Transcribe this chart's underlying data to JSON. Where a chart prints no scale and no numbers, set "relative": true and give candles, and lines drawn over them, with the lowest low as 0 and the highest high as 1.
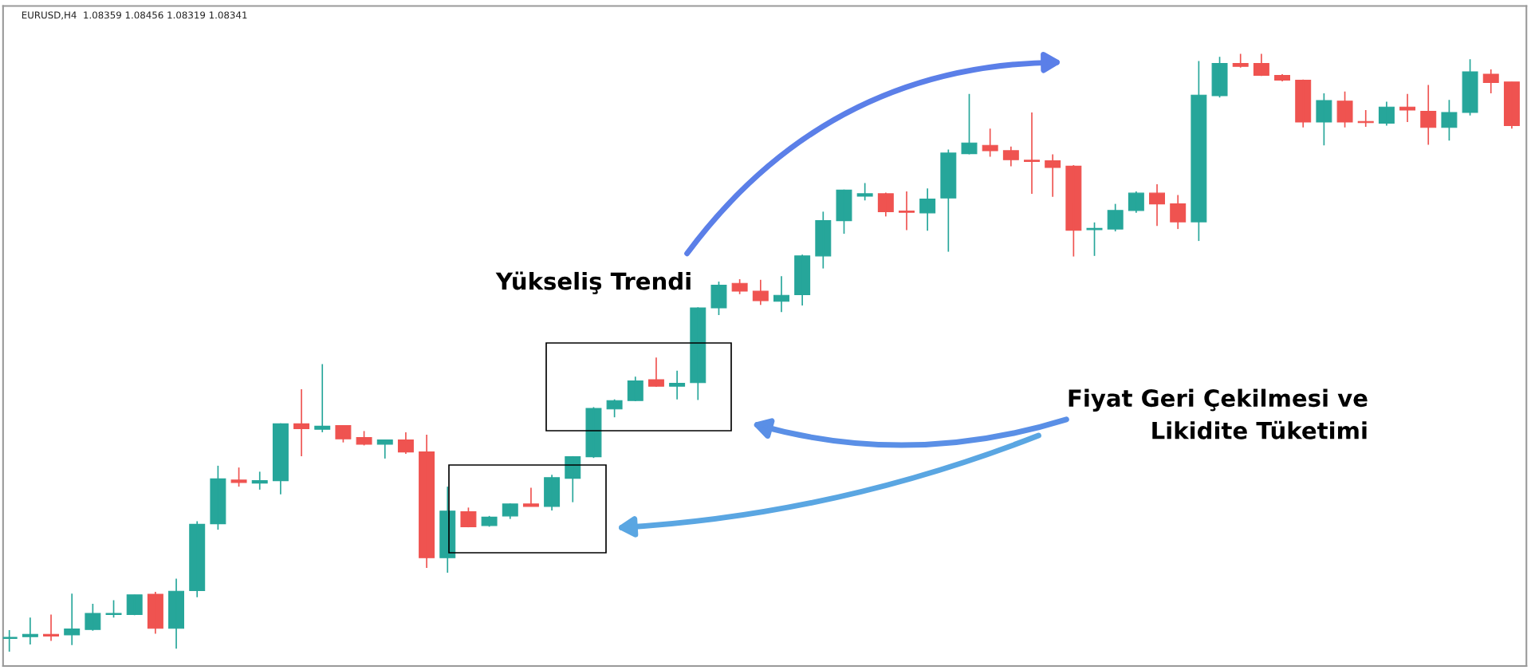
{
  "chart_data": {
    "type": "candlestick",
    "title": "EURUSD,H4  1.08359 1.08456 1.08319 1.08341",
    "relative": true,
    "categories": [
      null,
      null,
      null,
      null,
      null,
      null,
      null,
      null,
      null,
      null,
      null,
      null,
      null,
      null,
      null,
      null,
      null,
      null,
      null,
      null,
      null,
      null,
      null,
      null,
      null,
      null,
      null,
      null,
      null,
      null,
      null,
      null,
      null,
      null,
      null,
      null,
      null,
      null,
      null,
      null,
      null,
      null,
      null,
      null,
      null,
      null,
      null,
      null,
      null,
      null,
      null,
      null,
      null,
      null,
      null,
      null,
      null,
      null,
      null,
      null,
      null,
      null,
      null,
      null,
      null,
      null,
      null,
      null,
      null,
      null,
      null,
      null,
      null
    ],
    "colors": [
      "#26a69a",
      "#26a69a",
      "#ef5350",
      "#26a69a",
      "#26a69a",
      "#26a69a",
      "#26a69a",
      "#ef5350",
      "#26a69a",
      "#26a69a",
      "#26a69a",
      "#ef5350",
      "#26a69a",
      "#26a69a",
      "#ef5350",
      "#26a69a",
      "#ef5350",
      "#ef5350",
      "#26a69a",
      "#ef5350",
      "#ef5350",
      "#26a69a",
      "#ef5350",
      "#26a69a",
      "#26a69a",
      "#ef5350",
      "#26a69a",
      "#26a69a",
      "#26a69a",
      "#26a69a",
      "#26a69a",
      "#ef5350",
      "#26a69a",
      "#26a69a",
      "#26a69a",
      "#ef5350",
      "#ef5350",
      "#26a69a",
      "#26a69a",
      "#26a69a",
      "#26a69a",
      "#26a69a",
      "#ef5350",
      "#ef5350",
      "#26a69a",
      "#26a69a",
      "#26a69a",
      "#ef5350",
      "#ef5350",
      "#ef5350",
      "#ef5350",
      "#ef5350",
      "#26a69a",
      "#26a69a",
      "#26a69a",
      "#ef5350",
      "#ef5350",
      "#26a69a",
      "#26a69a",
      "#ef5350",
      "#ef5350",
      "#ef5350",
      "#ef5350",
      "#26a69a",
      "#ef5350",
      "#ef5350",
      "#26a69a",
      "#ef5350",
      "#ef5350",
      "#26a69a",
      "#26a69a",
      "#ef5350",
      "#ef5350"
    ],
    "ohlc": [
      [
        0.022,
        0.036,
        0,
        0.024
      ],
      [
        0.025,
        0.057,
        0.012,
        0.029
      ],
      [
        0.029,
        0.062,
        0.018,
        0.026
      ],
      [
        0.028,
        0.097,
        0.011,
        0.038
      ],
      [
        0.037,
        0.08,
        0.035,
        0.064
      ],
      [
        0.062,
        0.086,
        0.057,
        0.064
      ],
      [
        0.062,
        0.095,
        0.061,
        0.095
      ],
      [
        0.096,
        0.1,
        0.03,
        0.039
      ],
      [
        0.039,
        0.122,
        0.005,
        0.101
      ],
      [
        0.102,
        0.218,
        0.091,
        0.213
      ],
      [
        0.214,
        0.311,
        0.204,
        0.289
      ],
      [
        0.287,
        0.308,
        0.276,
        0.283
      ],
      [
        0.282,
        0.301,
        0.271,
        0.286
      ],
      [
        0.286,
        0.382,
        0.263,
        0.381
      ],
      [
        0.381,
        0.439,
        0.327,
        0.373
      ],
      [
        0.372,
        0.481,
        0.367,
        0.377
      ],
      [
        0.378,
        0.378,
        0.35,
        0.356
      ],
      [
        0.358,
        0.369,
        0.345,
        0.347
      ],
      [
        0.347,
        0.354,
        0.323,
        0.354
      ],
      [
        0.354,
        0.367,
        0.331,
        0.334
      ],
      [
        0.334,
        0.363,
        0.14,
        0.157
      ],
      [
        0.157,
        0.276,
        0.132,
        0.235
      ],
      [
        0.234,
        0.241,
        0.208,
        0.209
      ],
      [
        0.211,
        0.227,
        0.209,
        0.225
      ],
      [
        0.227,
        0.248,
        0.222,
        0.247
      ],
      [
        0.247,
        0.274,
        0.243,
        0.243
      ],
      [
        0.243,
        0.296,
        0.236,
        0.291
      ],
      [
        0.29,
        0.327,
        0.25,
        0.326
      ],
      [
        0.326,
        0.409,
        0.324,
        0.407
      ],
      [
        0.406,
        0.422,
        0.392,
        0.42
      ],
      [
        0.42,
        0.46,
        0.419,
        0.453
      ],
      [
        0.455,
        0.492,
        0.443,
        0.444
      ],
      [
        0.444,
        0.47,
        0.422,
        0.449
      ],
      [
        0.45,
        0.576,
        0.421,
        0.575
      ],
      [
        0.575,
        0.619,
        0.563,
        0.613
      ],
      [
        0.616,
        0.623,
        0.598,
        0.603
      ],
      [
        0.603,
        0.622,
        0.58,
        0.587
      ],
      [
        0.586,
        0.628,
        0.568,
        0.596
      ],
      [
        0.597,
        0.664,
        0.579,
        0.662
      ],
      [
        0.662,
        0.736,
        0.641,
        0.721
      ],
      [
        0.721,
        0.773,
        0.699,
        0.772
      ],
      [
        0.762,
        0.784,
        0.755,
        0.766
      ],
      [
        0.766,
        0.768,
        0.728,
        0.736
      ],
      [
        0.737,
        0.77,
        0.705,
        0.735
      ],
      [
        0.734,
        0.775,
        0.704,
        0.757
      ],
      [
        0.759,
        0.84,
        0.669,
        0.834
      ],
      [
        0.833,
        0.933,
        0.832,
        0.851
      ],
      [
        0.847,
        0.875,
        0.828,
        0.838
      ],
      [
        0.838,
        0.845,
        0.812,
        0.823
      ],
      [
        0.822,
        0.902,
        0.766,
        0.82
      ],
      [
        0.821,
        0.832,
        0.761,
        0.81
      ],
      [
        0.812,
        0.814,
        0.661,
        0.705
      ],
      [
        0.706,
        0.718,
        0.662,
        0.708
      ],
      [
        0.707,
        0.749,
        0.703,
        0.738
      ],
      [
        0.738,
        0.77,
        0.734,
        0.767
      ],
      [
        0.767,
        0.782,
        0.712,
        0.749
      ],
      [
        0.749,
        0.764,
        0.707,
        0.719
      ],
      [
        0.719,
        0.988,
        0.687,
        0.931
      ],
      [
        0.93,
        0.995,
        0.927,
        0.984
      ],
      [
        0.984,
        1,
        0.977,
        0.979
      ],
      [
        0.984,
        1,
        0.963,
        0.964
      ],
      [
        0.964,
        0.966,
        0.954,
        0.956
      ],
      [
        0.956,
        0.957,
        0.877,
        0.886
      ],
      [
        0.886,
        0.934,
        0.847,
        0.922
      ],
      [
        0.921,
        0.937,
        0.877,
        0.886
      ],
      [
        0.887,
        0.906,
        0.878,
        0.885
      ],
      [
        0.884,
        0.92,
        0.88,
        0.911
      ],
      [
        0.911,
        0.933,
        0.886,
        0.906
      ],
      [
        0.904,
        0.948,
        0.848,
        0.877
      ],
      [
        0.877,
        0.923,
        0.855,
        0.902
      ],
      [
        0.902,
        0.991,
        0.897,
        0.97
      ],
      [
        0.966,
        0.974,
        0.934,
        0.952
      ],
      [
        0.953,
        0.953,
        0.875,
        0.88
      ]
    ],
    "annotations": [
      "Yükseliş Trendi",
      "Fiyat Geri Çekilmesi ve\nLikidite Tüketimi"
    ]
  }
}
